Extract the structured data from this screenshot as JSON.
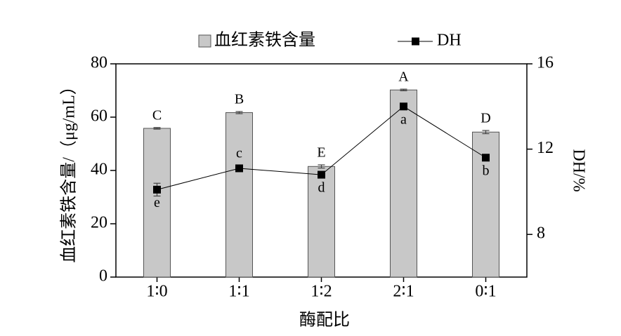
{
  "chart_data": {
    "type": "bar+line",
    "x_label": "酶配比",
    "y_label": "血红素铁含量/（μg/mL）",
    "y2_label": "DH/%",
    "categories": [
      "1∶0",
      "1∶1",
      "1∶2",
      "2∶1",
      "0∶1"
    ],
    "series": [
      {
        "name": "血红素铁含量",
        "type": "bar",
        "color": "#c8c8c8",
        "values": [
          55.8,
          61.7,
          41.5,
          70.2,
          54.4
        ],
        "errors": [
          0.3,
          0.4,
          0.6,
          0.3,
          0.6
        ],
        "labels": [
          "C",
          "B",
          "E",
          "A",
          "D"
        ]
      },
      {
        "name": "DH",
        "type": "line",
        "axis": "y2",
        "color": "#000000",
        "values": [
          10.1,
          11.1,
          10.8,
          14.0,
          11.6
        ],
        "errors": [
          0.3,
          0.1,
          0.15,
          0.15,
          0.15
        ],
        "labels": [
          "e",
          "c",
          "d",
          "a",
          "b"
        ]
      }
    ],
    "ylim": [
      0,
      80
    ],
    "yticks": [
      0,
      20,
      40,
      60,
      80
    ],
    "y2lim": [
      6,
      16
    ],
    "y2ticks": [
      8,
      12,
      16
    ],
    "legend": "top"
  }
}
